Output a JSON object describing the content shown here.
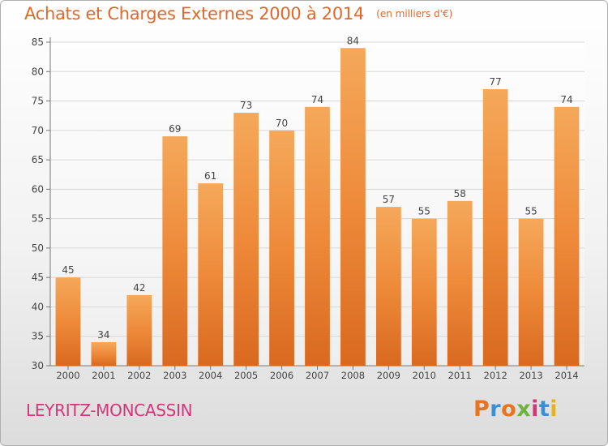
{
  "chart_data": {
    "type": "bar",
    "title": "Achats et Charges Externes 2000 à 2014",
    "subtitle": "(en milliers d'€)",
    "categories": [
      "2000",
      "2001",
      "2002",
      "2003",
      "2004",
      "2005",
      "2006",
      "2007",
      "2008",
      "2009",
      "2010",
      "2011",
      "2012",
      "2013",
      "2014"
    ],
    "values": [
      45,
      34,
      42,
      69,
      61,
      73,
      70,
      74,
      84,
      57,
      55,
      58,
      77,
      55,
      74
    ],
    "data_labels": [
      "45",
      "34",
      "42",
      "69",
      "61",
      "73",
      "70",
      "74",
      "84",
      "57",
      "55",
      "58",
      "77",
      "55",
      "74"
    ],
    "ylim": [
      30,
      85
    ],
    "yticks": [
      30,
      35,
      40,
      45,
      50,
      55,
      60,
      65,
      70,
      75,
      80,
      85
    ],
    "ytick_labels": [
      "30",
      "35",
      "40",
      "45",
      "50",
      "55",
      "60",
      "65",
      "70",
      "75",
      "80",
      "85"
    ],
    "grid": true,
    "xlabel": "",
    "ylabel": "",
    "bar_color": "#ee8a3a",
    "bar_color_light": "#f5a85a",
    "bar_color_dark": "#d9691f"
  },
  "location": "LEYRITZ-MONCASSIN",
  "brand": {
    "letters": [
      "P",
      "r",
      "o",
      "x",
      "i",
      "t",
      "i"
    ],
    "colors": [
      "#e8741f",
      "#3b8fd6",
      "#e8741f",
      "#6db33f",
      "#d6357a",
      "#3b8fd6",
      "#e8b21f"
    ]
  },
  "colors": {
    "title": "#e2682a",
    "location": "#d6357a",
    "grid": "#d8d8d8",
    "axis": "#777777",
    "label": "#444444"
  }
}
